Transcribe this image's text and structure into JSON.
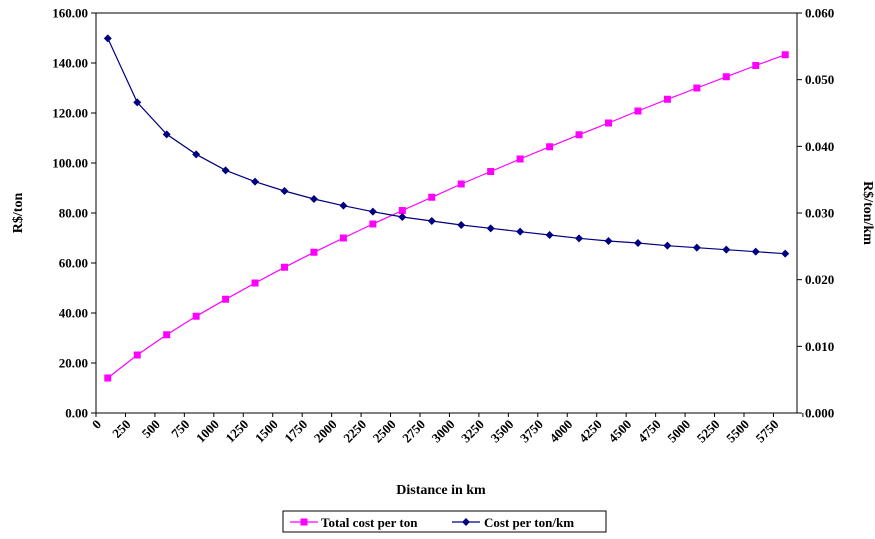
{
  "chart_data": {
    "type": "line",
    "x": [
      100,
      350,
      600,
      850,
      1100,
      1350,
      1600,
      1850,
      2100,
      2350,
      2600,
      2850,
      3100,
      3350,
      3600,
      3850,
      4100,
      4350,
      4600,
      4850,
      5100,
      5350,
      5600,
      5850
    ],
    "x_tick_labels": [
      "0",
      "250",
      "500",
      "750",
      "1000",
      "1250",
      "1500",
      "1750",
      "2000",
      "2250",
      "2500",
      "2750",
      "3000",
      "3250",
      "3500",
      "3750",
      "4000",
      "4250",
      "4500",
      "4750",
      "5000",
      "5250",
      "5500",
      "5750"
    ],
    "xlabel": "Distance in km",
    "ylabel_left": "R$/ton",
    "ylabel_right": "R$/ton/km",
    "ylim_left": [
      0,
      160
    ],
    "ylim_right": [
      0,
      0.06
    ],
    "y_left_ticks": [
      "0.00",
      "20.00",
      "40.00",
      "60.00",
      "80.00",
      "100.00",
      "120.00",
      "140.00",
      "160.00"
    ],
    "y_right_ticks": [
      "0.000",
      "0.010",
      "0.020",
      "0.030",
      "0.040",
      "0.050",
      "0.060"
    ],
    "legend_position": "bottom",
    "grid": false,
    "series": [
      {
        "name": "Total cost per ton",
        "axis": "left",
        "color": "#ff00ff",
        "marker": "square",
        "values": [
          14.0,
          23.2,
          31.3,
          38.7,
          45.5,
          52.0,
          58.3,
          64.3,
          70.0,
          75.6,
          81.0,
          86.3,
          91.6,
          96.6,
          101.6,
          106.5,
          111.3,
          116.0,
          120.8,
          125.5,
          130.0,
          134.5,
          139.0,
          143.3
        ]
      },
      {
        "name": "Cost per ton/km",
        "axis": "right",
        "color": "#000080",
        "marker": "diamond",
        "values": [
          0.0562,
          0.0466,
          0.0418,
          0.0388,
          0.0364,
          0.0347,
          0.0333,
          0.0321,
          0.0311,
          0.0302,
          0.0294,
          0.0288,
          0.0282,
          0.0277,
          0.0272,
          0.0267,
          0.0262,
          0.0258,
          0.0255,
          0.0251,
          0.0248,
          0.0245,
          0.0242,
          0.0239
        ]
      }
    ]
  }
}
